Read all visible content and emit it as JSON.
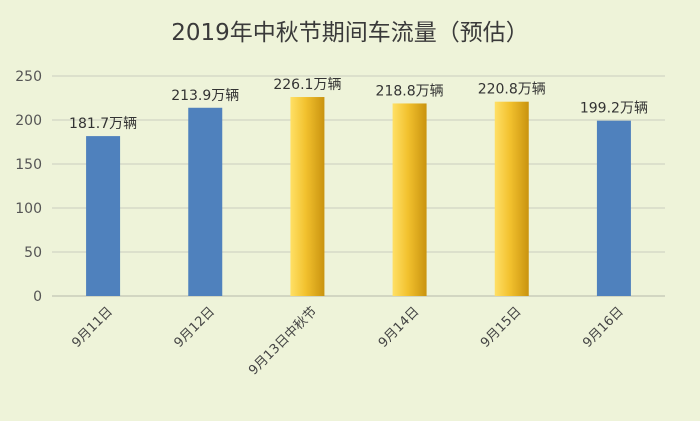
{
  "chart_data": {
    "type": "bar",
    "title": "2019年中秋节期间车流量（预估）",
    "xlabel": "",
    "ylabel": "",
    "ylim": [
      0,
      250
    ],
    "yticks": [
      0,
      50,
      100,
      150,
      200,
      250
    ],
    "grid": true,
    "legend": "none",
    "categories": [
      "9月11日",
      "9月12日",
      "9月13日中秋节",
      "9月14日",
      "9月15日",
      "9月16日"
    ],
    "values": [
      181.7,
      213.9,
      226.1,
      218.8,
      220.8,
      199.2
    ],
    "data_labels": [
      "181.7万辆",
      "213.9万辆",
      "226.1万辆",
      "218.8万辆",
      "220.8万辆",
      "199.2万辆"
    ],
    "bar_styles": [
      "blue",
      "blue",
      "gold",
      "gold",
      "gold",
      "blue"
    ],
    "colors": {
      "blue": "#4f81bd",
      "gold_light": "#ffe066",
      "gold_mid": "#f2c12e",
      "gold_dark": "#c9930f"
    }
  }
}
